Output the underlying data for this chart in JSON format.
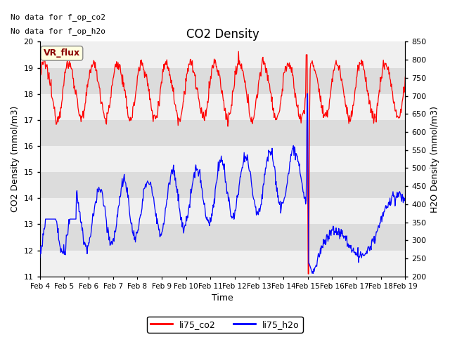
{
  "title": "CO2 Density",
  "xlabel": "Time",
  "ylabel_left": "CO2 Density (mmol/m3)",
  "ylabel_right": "H2O Density (mmol/m3)",
  "ylim_left": [
    11.0,
    20.0
  ],
  "ylim_right": [
    200,
    850
  ],
  "text_no_data": [
    "No data for f_op_co2",
    "No data for f_op_h2o"
  ],
  "label_box": "VR_flux",
  "legend_entries": [
    "li75_co2",
    "li75_h2o"
  ],
  "legend_colors": [
    "#ff0000",
    "#0000ff"
  ],
  "xticklabels": [
    "Feb 4",
    "Feb 5",
    "Feb 6",
    "Feb 7",
    "Feb 8",
    "Feb 9",
    "Feb 10",
    "Feb 11",
    "Feb 12",
    "Feb 13",
    "Feb 14",
    "Feb 15",
    "Feb 16",
    "Feb 17",
    "Feb 18",
    "Feb 19"
  ],
  "yticks_left": [
    11.0,
    12.0,
    13.0,
    14.0,
    15.0,
    16.0,
    17.0,
    18.0,
    19.0,
    20.0
  ],
  "yticks_right": [
    200,
    250,
    300,
    350,
    400,
    450,
    500,
    550,
    600,
    650,
    700,
    750,
    800,
    850
  ],
  "band_light": "#f0f0f0",
  "band_dark": "#dcdcdc",
  "co2_color": "#ff0000",
  "h2o_color": "#0000ff",
  "figsize": [
    6.4,
    4.8
  ],
  "dpi": 100
}
